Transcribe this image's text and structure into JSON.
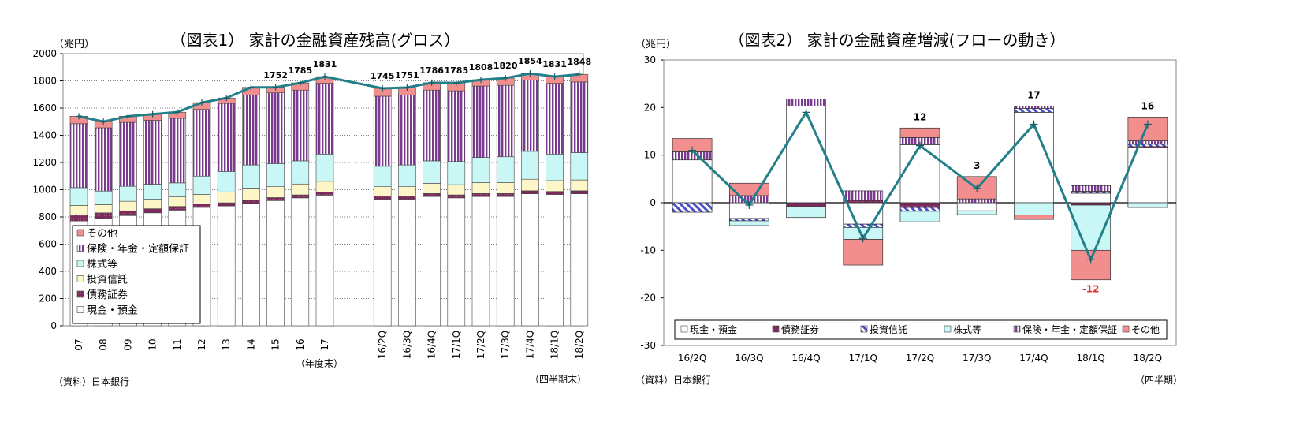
{
  "chart_data": [
    {
      "type": "bar",
      "title": "（図表1） 家計の金融資産残高(グロス）",
      "ylabel": "（兆円）",
      "ylim": [
        0,
        2000
      ],
      "yticks": [
        "0",
        "200",
        "400",
        "600",
        "800",
        "1000",
        "1200",
        "1400",
        "1600",
        "1800",
        "2000"
      ],
      "stacked": true,
      "categories": [
        "07",
        "08",
        "09",
        "10",
        "11",
        "12",
        "13",
        "14",
        "15",
        "16",
        "17",
        "16/2Q",
        "16/3Q",
        "16/4Q",
        "17/1Q",
        "17/2Q",
        "17/3Q",
        "17/4Q",
        "18/1Q",
        "18/2Q"
      ],
      "group_labels": [
        "（年度末）",
        "（四半期末）"
      ],
      "source": "（資料）日本銀行",
      "legend_position": "bottom-left",
      "series": [
        {
          "name": "現金・預金",
          "color": "#ffffff",
          "values": [
            770,
            790,
            810,
            830,
            850,
            870,
            880,
            900,
            920,
            940,
            960,
            930,
            930,
            950,
            940,
            950,
            950,
            970,
            965,
            970
          ]
        },
        {
          "name": "債務証券",
          "color": "#7b2a5b",
          "values": [
            45,
            40,
            35,
            30,
            27,
            25,
            24,
            22,
            22,
            22,
            22,
            22,
            22,
            22,
            22,
            22,
            22,
            22,
            22,
            22
          ]
        },
        {
          "name": "投資信託",
          "color": "#fdf6c9",
          "values": [
            70,
            60,
            70,
            70,
            70,
            70,
            80,
            90,
            80,
            80,
            80,
            70,
            70,
            75,
            75,
            80,
            80,
            85,
            80,
            80
          ]
        },
        {
          "name": "株式等",
          "color": "#c9f7f5",
          "values": [
            130,
            100,
            110,
            110,
            103,
            135,
            150,
            170,
            170,
            170,
            200,
            150,
            160,
            165,
            170,
            185,
            190,
            205,
            195,
            200
          ]
        },
        {
          "name": "保険・年金・定額保証",
          "color": "#7a3a8e",
          "values": [
            470,
            465,
            470,
            470,
            475,
            490,
            500,
            515,
            520,
            520,
            520,
            515,
            515,
            520,
            520,
            525,
            525,
            525,
            520,
            520
          ]
        },
        {
          "name": "その他",
          "color": "#f28e8e",
          "values": [
            55,
            45,
            45,
            45,
            45,
            50,
            40,
            55,
            40,
            53,
            49,
            58,
            54,
            54,
            58,
            46,
            53,
            47,
            49,
            56
          ]
        }
      ],
      "total_line": {
        "values": [
          1540,
          1500,
          1540,
          1555,
          1570,
          1640,
          1674,
          1752,
          1752,
          1785,
          1831,
          1745,
          1751,
          1786,
          1785,
          1808,
          1820,
          1854,
          1831,
          1848
        ]
      },
      "data_labels": [
        null,
        null,
        null,
        null,
        null,
        null,
        null,
        null,
        "1752",
        "1785",
        "1831",
        "1745",
        "1751",
        "1786",
        "1785",
        "1808",
        "1820",
        "1854",
        "1831",
        "1848"
      ]
    },
    {
      "type": "bar",
      "title": "（図表2） 家計の金融資産増減(フローの動き）",
      "ylabel": "（兆円）",
      "ylim": [
        -30,
        30
      ],
      "yticks": [
        "-30",
        "-20",
        "-10",
        "0",
        "10",
        "20",
        "30"
      ],
      "stacked": true,
      "categories": [
        "16/2Q",
        "16/3Q",
        "16/4Q",
        "17/1Q",
        "17/2Q",
        "17/3Q",
        "17/4Q",
        "18/1Q",
        "18/2Q"
      ],
      "xlabel": "（四半期）",
      "source": "（資料）日本銀行",
      "legend_position": "bottom",
      "series": [
        {
          "name": "現金・預金",
          "color": "#ffffff",
          "values": [
            9,
            -3.3,
            20.3,
            -4.5,
            12.2,
            -1.7,
            19,
            2,
            11.5
          ]
        },
        {
          "name": "債務証券",
          "color": "#7b2a5b",
          "values": [
            0,
            0,
            -0.8,
            0.5,
            -1,
            0,
            0,
            -0.5,
            0.3
          ]
        },
        {
          "name": "投資信託",
          "color": "#4a4ec8",
          "values": [
            -2,
            -0.5,
            0,
            -0.7,
            -0.8,
            0,
            0.8,
            0.4,
            0.5
          ]
        },
        {
          "name": "株式等",
          "color": "#c9f7f5",
          "values": [
            0,
            -1,
            -2.3,
            -2.5,
            -2.2,
            -0.8,
            -2.6,
            -9.5,
            -1
          ]
        },
        {
          "name": "保険・年金・定額保証",
          "color": "#7a3a8e",
          "values": [
            1.7,
            1.5,
            1.5,
            2,
            1.5,
            0.8,
            0.5,
            1.2,
            0.7
          ]
        },
        {
          "name": "その他",
          "color": "#f28e8e",
          "values": [
            2.8,
            2.6,
            0,
            -5.4,
            2,
            4.7,
            -0.9,
            -6.2,
            5
          ]
        }
      ],
      "total_line": {
        "values": [
          11,
          -0.5,
          19,
          -7.5,
          12,
          3,
          16.5,
          -12,
          16.5
        ]
      },
      "data_labels": [
        null,
        null,
        null,
        null,
        "12",
        "3",
        "17",
        "-12",
        "16"
      ]
    }
  ]
}
